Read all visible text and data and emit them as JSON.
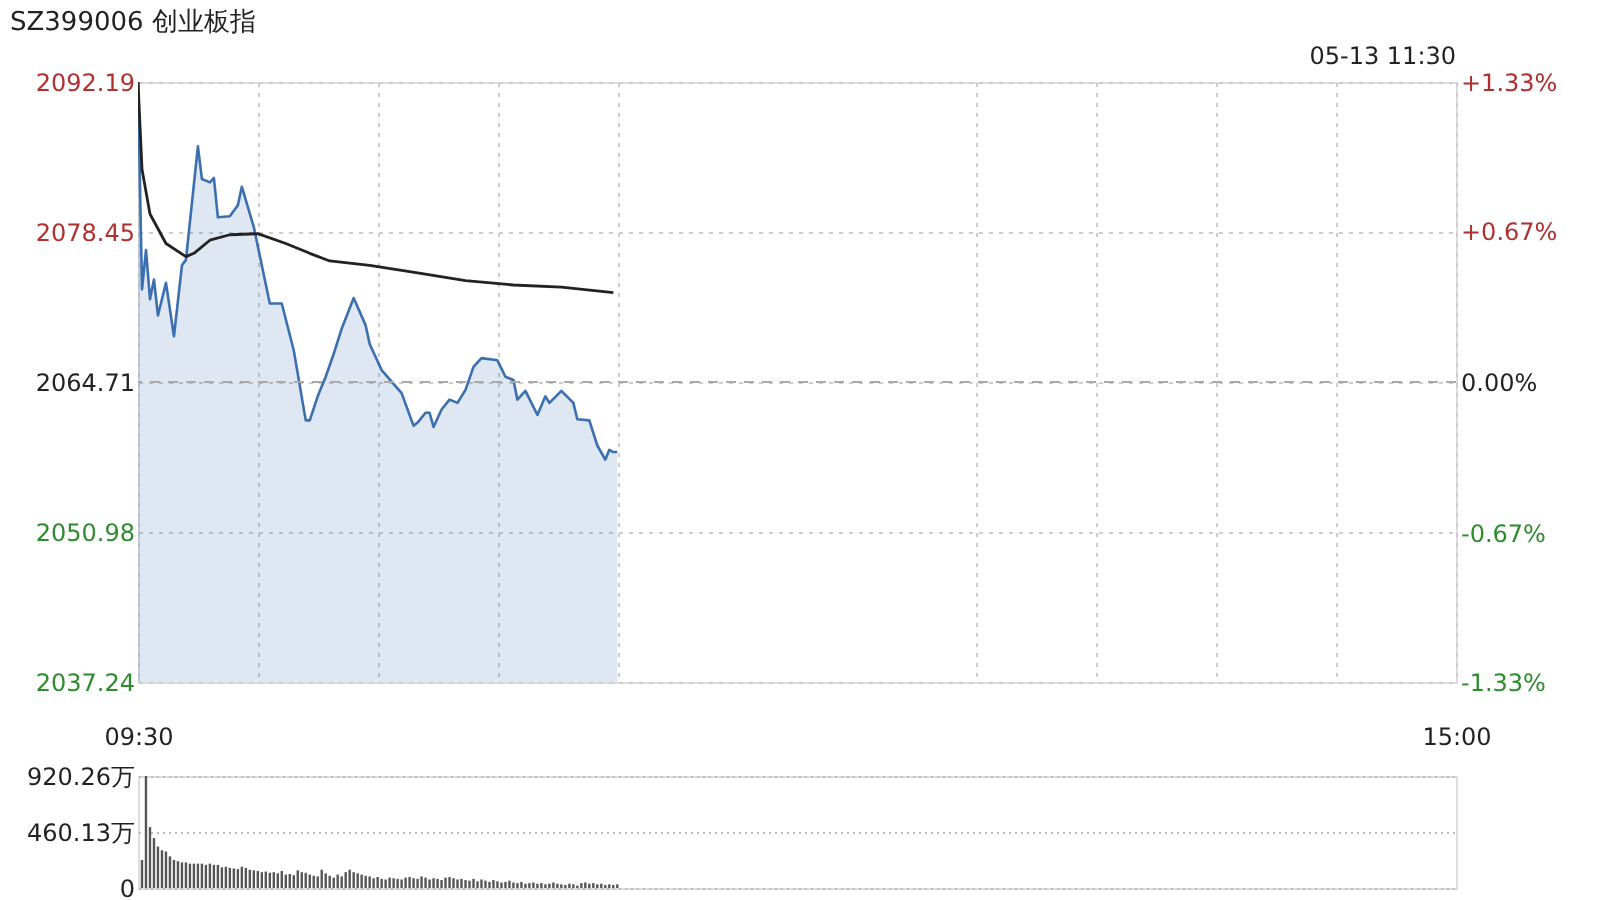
{
  "chart_data": [
    {
      "type": "line",
      "title": "SZ399006 创业板指",
      "annotations": [
        "05-13 11:30"
      ],
      "xlim": [
        9.5,
        15
      ],
      "xticks": [
        {
          "value": 9.5,
          "label": "09:30"
        },
        {
          "value": 10,
          "label": null
        },
        {
          "value": 10.5,
          "label": null
        },
        {
          "value": 11,
          "label": null
        },
        {
          "value": 11.5,
          "label": null
        },
        {
          "value": 13,
          "label": null
        },
        {
          "value": 13.5,
          "label": null
        },
        {
          "value": 14,
          "label": null
        },
        {
          "value": 14.5,
          "label": null
        },
        {
          "value": 15,
          "label": "15:00"
        }
      ],
      "ylim": [
        2037.24,
        2092.19
      ],
      "yticks": [
        2037.24,
        2050.98,
        2064.71,
        2078.45,
        2092.19
      ],
      "y2lim": [
        -1.33,
        1.33
      ],
      "y2ticks": [
        {
          "value": -1.33,
          "label": "-1.33%"
        },
        {
          "value": -0.67,
          "label": "-0.67%"
        },
        {
          "value": 0,
          "label": "0.00%"
        },
        {
          "value": 0.67,
          "label": "+0.67%"
        },
        {
          "value": 1.33,
          "label": "+1.33%"
        }
      ],
      "grid": true,
      "ref_lines": [
        {
          "axis": "y",
          "value": 2064.71,
          "color": "#aaaaaa",
          "line_style": "dashed"
        }
      ],
      "series": [
        {
          "type": "area",
          "color": "#3b6fb0",
          "x": [
            9.5,
            9.5167,
            9.5333,
            9.55,
            9.5667,
            9.5833,
            9.6167,
            9.65,
            9.6833,
            9.7,
            9.75,
            9.7667,
            9.8,
            9.8167,
            9.8333,
            9.8833,
            9.9167,
            9.9333,
            9.9833,
            10.05,
            10.1,
            10.15,
            10.2,
            10.2167,
            10.25,
            10.2833,
            10.3167,
            10.35,
            10.4,
            10.45,
            10.4667,
            10.5167,
            10.6,
            10.65,
            10.6667,
            10.7,
            10.7167,
            10.7333,
            10.7667,
            10.8,
            10.8333,
            10.8667,
            10.9,
            10.9333,
            11,
            11.0333,
            11.0667,
            11.0833,
            11.1167,
            11.1667,
            11.2,
            11.2167,
            11.2667,
            11.3167,
            11.3333,
            11.3833,
            11.4167,
            11.45,
            11.4667,
            11.4833,
            11.5
          ],
          "values": [
            2092.19,
            2073.2,
            2076.8,
            2072.3,
            2074.1,
            2070.8,
            2073.8,
            2068.9,
            2075.4,
            2075.9,
            2086.3,
            2083.3,
            2083.0,
            2083.4,
            2079.8,
            2079.9,
            2080.9,
            2082.6,
            2078.9,
            2071.9,
            2071.9,
            2067.6,
            2061.2,
            2061.2,
            2063.4,
            2065.2,
            2067.3,
            2069.6,
            2072.4,
            2069.9,
            2068.2,
            2065.8,
            2063.7,
            2060.7,
            2061.0,
            2061.9,
            2061.9,
            2060.6,
            2062.2,
            2063.1,
            2062.8,
            2064.0,
            2066.1,
            2066.9,
            2066.7,
            2065.2,
            2064.9,
            2063.1,
            2063.9,
            2061.7,
            2063.4,
            2062.8,
            2063.9,
            2062.8,
            2061.3,
            2061.2,
            2058.9,
            2057.6,
            2058.5,
            2058.3,
            2058.3
          ]
        },
        {
          "type": "line",
          "color": "#222222",
          "x": [
            9.5,
            9.5167,
            9.55,
            9.6167,
            9.7,
            9.7333,
            9.8,
            9.8833,
            10,
            10.1167,
            10.2167,
            10.3,
            10.4667,
            10.6667,
            10.8667,
            11.0667,
            11.2667,
            11.4833
          ],
          "values": [
            2092.19,
            2084.2,
            2080.1,
            2077.4,
            2076.2,
            2076.5,
            2077.7,
            2078.2,
            2078.3,
            2077.4,
            2076.5,
            2075.8,
            2075.4,
            2074.7,
            2074.0,
            2073.6,
            2073.4,
            2072.9
          ]
        }
      ]
    },
    {
      "type": "bar",
      "color": "#555555",
      "xlim": [
        9.5,
        15
      ],
      "ylim": [
        0,
        920.26
      ],
      "yticks": [
        0,
        {
          "value": 460.13,
          "label": "460.13万"
        },
        {
          "value": 920.26,
          "label": "920.26万"
        }
      ],
      "grid": "y",
      "tick_labels": "y",
      "x": [
        9.5167,
        9.5333,
        9.55,
        9.5667,
        9.5833,
        9.6,
        9.6167,
        9.6333,
        9.65,
        9.6667,
        9.6833,
        9.7,
        9.7167,
        9.7333,
        9.75,
        9.7667,
        9.7833,
        9.8,
        9.8167,
        9.8333,
        9.85,
        9.8667,
        9.8833,
        9.9,
        9.9167,
        9.9333,
        9.95,
        9.9667,
        9.9833,
        10,
        10.0167,
        10.0333,
        10.05,
        10.0667,
        10.0833,
        10.1,
        10.1167,
        10.1333,
        10.15,
        10.1667,
        10.1833,
        10.2,
        10.2167,
        10.2333,
        10.25,
        10.2667,
        10.2833,
        10.3,
        10.3167,
        10.3333,
        10.35,
        10.3667,
        10.3833,
        10.4,
        10.4167,
        10.4333,
        10.45,
        10.4667,
        10.4833,
        10.5,
        10.5167,
        10.5333,
        10.55,
        10.5667,
        10.5833,
        10.6,
        10.6167,
        10.6333,
        10.65,
        10.6667,
        10.6833,
        10.7,
        10.7167,
        10.7333,
        10.75,
        10.7667,
        10.7833,
        10.8,
        10.8167,
        10.8333,
        10.85,
        10.8667,
        10.8833,
        10.9,
        10.9167,
        10.9333,
        10.95,
        10.9667,
        10.9833,
        11,
        11.0167,
        11.0333,
        11.05,
        11.0667,
        11.0833,
        11.1,
        11.1167,
        11.1333,
        11.15,
        11.1667,
        11.1833,
        11.2,
        11.2167,
        11.2333,
        11.25,
        11.2667,
        11.2833,
        11.3,
        11.3167,
        11.3333,
        11.35,
        11.3667,
        11.3833,
        11.4,
        11.4167,
        11.4333,
        11.45,
        11.4667,
        11.4833,
        11.5
      ],
      "values": [
        230,
        920.26,
        500,
        410,
        340,
        310,
        300,
        260,
        230,
        220,
        210,
        210,
        200,
        200,
        200,
        200,
        190,
        200,
        190,
        190,
        170,
        175,
        165,
        160,
        155,
        175,
        165,
        150,
        145,
        140,
        130,
        135,
        125,
        130,
        120,
        140,
        110,
        115,
        105,
        145,
        130,
        125,
        110,
        100,
        95,
        150,
        120,
        100,
        85,
        110,
        95,
        130,
        150,
        130,
        120,
        110,
        100,
        95,
        80,
        90,
        75,
        70,
        85,
        80,
        75,
        70,
        85,
        90,
        80,
        75,
        95,
        85,
        70,
        80,
        75,
        65,
        85,
        90,
        80,
        70,
        75,
        65,
        60,
        75,
        55,
        70,
        60,
        50,
        65,
        55,
        45,
        50,
        60,
        45,
        40,
        50,
        35,
        40,
        45,
        35,
        40,
        30,
        35,
        45,
        35,
        30,
        25,
        35,
        30,
        20,
        40,
        45,
        35,
        40,
        30,
        35,
        25,
        30,
        25,
        30
      ]
    }
  ]
}
